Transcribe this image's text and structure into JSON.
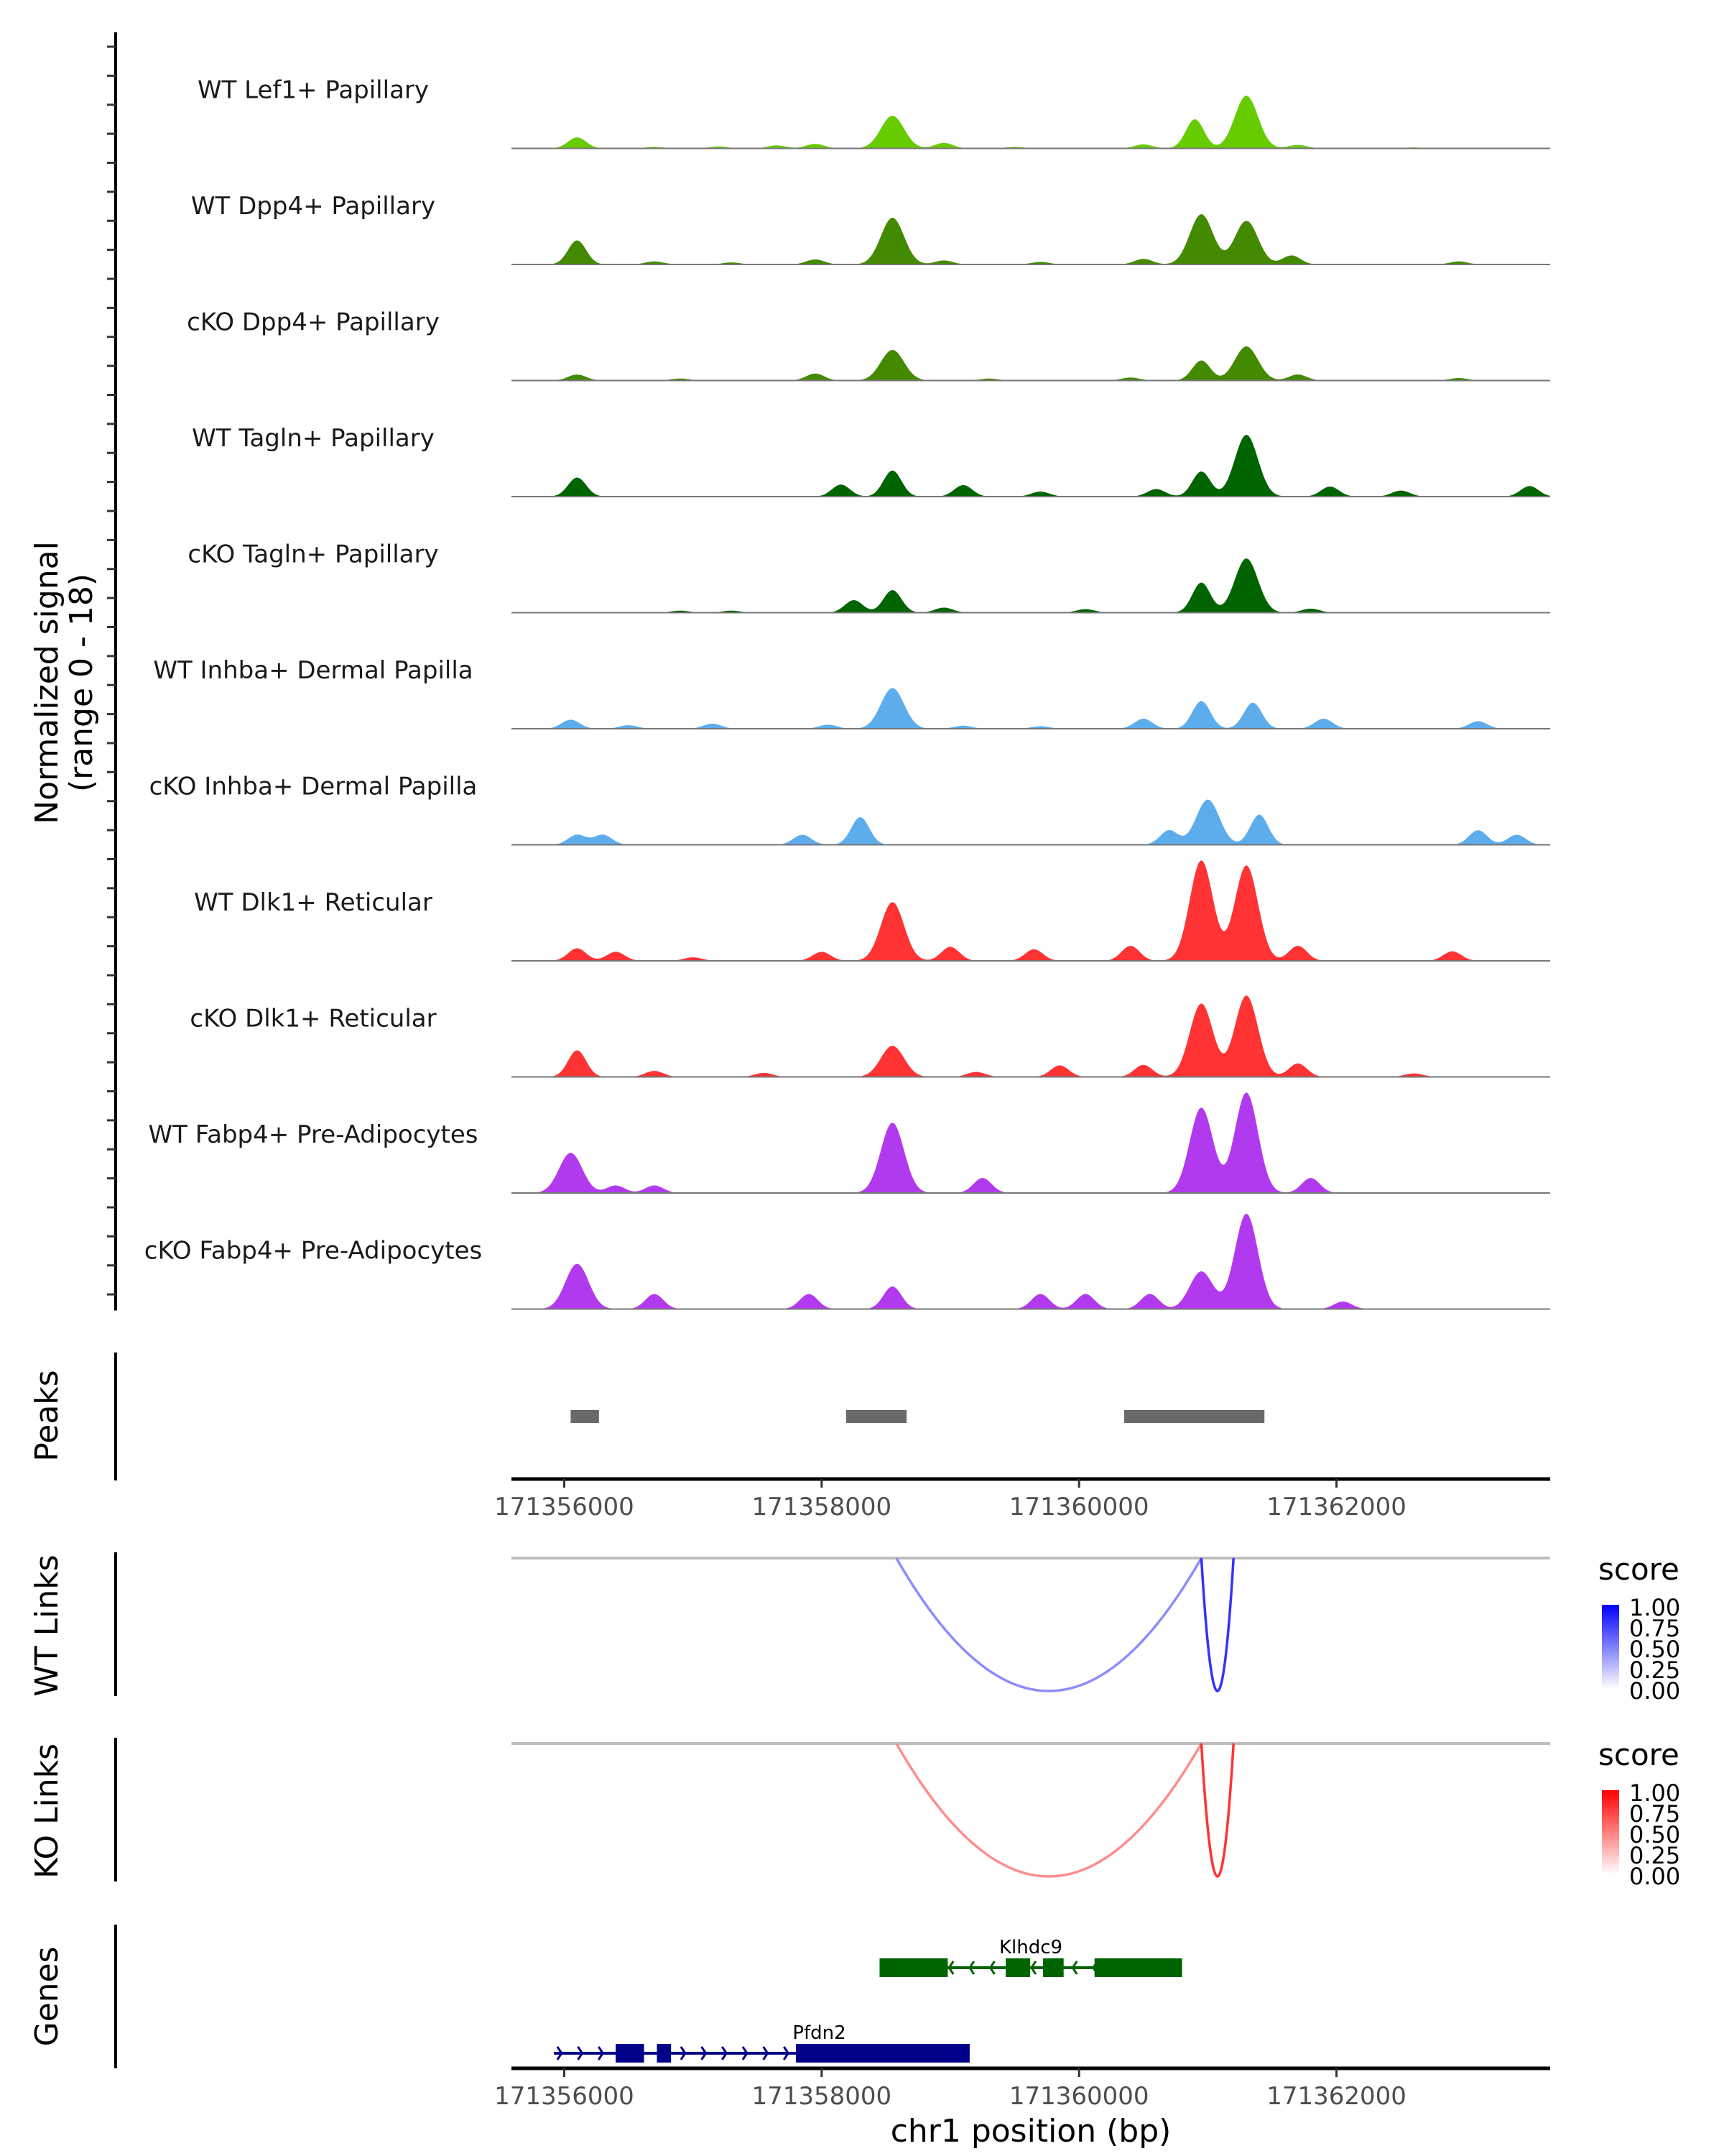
{
  "chart_data": {
    "type": "area",
    "title": "",
    "ylabel": "Normalized signal\n(range 0 - 18)",
    "ylabel_lines": [
      "Normalized signal",
      "(range 0 - 18)"
    ],
    "xlabel": "chr1 position (bp)",
    "chromosome": "chr1",
    "xlim": [
      171355590,
      171363660
    ],
    "ylim": [
      0,
      18
    ],
    "x_ticks": [
      171356000,
      171358000,
      171360000,
      171362000
    ],
    "x_tick_labels": [
      "171356000",
      "171358000",
      "171360000",
      "171362000"
    ],
    "coverage_tracks": [
      {
        "name": "WT Lef1+ Papillary",
        "color": "#66CC00",
        "peaks": [
          [
            171356100,
            2.2
          ],
          [
            171356700,
            0.3
          ],
          [
            171357200,
            0.4
          ],
          [
            171357650,
            0.6
          ],
          [
            171357950,
            0.9
          ],
          [
            171358550,
            6.5
          ],
          [
            171358950,
            1.1
          ],
          [
            171359500,
            0.3
          ],
          [
            171360500,
            0.8
          ],
          [
            171360900,
            5.8
          ],
          [
            171361300,
            10.5
          ],
          [
            171361700,
            0.7
          ],
          [
            171362600,
            0.2
          ]
        ]
      },
      {
        "name": "WT Dpp4+ Papillary",
        "color": "#448A00",
        "peaks": [
          [
            171356100,
            4.8
          ],
          [
            171356700,
            0.6
          ],
          [
            171357300,
            0.4
          ],
          [
            171357950,
            1.0
          ],
          [
            171358550,
            9.3
          ],
          [
            171358950,
            0.8
          ],
          [
            171359700,
            0.5
          ],
          [
            171360500,
            1.1
          ],
          [
            171360950,
            10.0
          ],
          [
            171361300,
            8.7
          ],
          [
            171361650,
            1.8
          ],
          [
            171362950,
            0.6
          ]
        ]
      },
      {
        "name": "cKO Dpp4+ Papillary",
        "color": "#448A00",
        "peaks": [
          [
            171356100,
            1.2
          ],
          [
            171356900,
            0.4
          ],
          [
            171357950,
            1.4
          ],
          [
            171358550,
            6.1
          ],
          [
            171359300,
            0.4
          ],
          [
            171360400,
            0.6
          ],
          [
            171360950,
            4.0
          ],
          [
            171361300,
            6.8
          ],
          [
            171361700,
            1.2
          ],
          [
            171362950,
            0.5
          ]
        ]
      },
      {
        "name": "WT Tagln+ Papillary",
        "color": "#006400",
        "peaks": [
          [
            171356100,
            3.8
          ],
          [
            171358150,
            2.4
          ],
          [
            171358550,
            5.2
          ],
          [
            171359100,
            2.3
          ],
          [
            171359700,
            1.0
          ],
          [
            171360600,
            1.5
          ],
          [
            171360950,
            5.0
          ],
          [
            171361300,
            12.3
          ],
          [
            171361950,
            2.0
          ],
          [
            171362500,
            1.2
          ],
          [
            171363500,
            2.1
          ]
        ]
      },
      {
        "name": "cKO Tagln+ Papillary",
        "color": "#006400",
        "peaks": [
          [
            171356900,
            0.4
          ],
          [
            171357300,
            0.4
          ],
          [
            171358250,
            2.5
          ],
          [
            171358550,
            4.5
          ],
          [
            171358950,
            1.0
          ],
          [
            171360050,
            0.7
          ],
          [
            171360950,
            6.0
          ],
          [
            171361300,
            10.8
          ],
          [
            171361800,
            0.8
          ]
        ]
      },
      {
        "name": "WT Inhba+ Dermal Papilla",
        "color": "#5DADEC",
        "peaks": [
          [
            171356050,
            1.8
          ],
          [
            171356500,
            0.7
          ],
          [
            171357150,
            1.0
          ],
          [
            171358050,
            0.8
          ],
          [
            171358550,
            8.1
          ],
          [
            171359100,
            0.6
          ],
          [
            171359700,
            0.5
          ],
          [
            171360500,
            2.0
          ],
          [
            171360950,
            5.5
          ],
          [
            171361350,
            5.2
          ],
          [
            171361900,
            2.0
          ],
          [
            171363100,
            1.5
          ]
        ]
      },
      {
        "name": "cKO Inhba+ Dermal Papilla",
        "color": "#5DADEC",
        "peaks": [
          [
            171356100,
            2.0
          ],
          [
            171356300,
            2.0
          ],
          [
            171357850,
            2.0
          ],
          [
            171358300,
            5.5
          ],
          [
            171360700,
            2.9
          ],
          [
            171361000,
            9.0
          ],
          [
            171361400,
            6.0
          ],
          [
            171363100,
            2.9
          ],
          [
            171363400,
            2.0
          ]
        ]
      },
      {
        "name": "WT Dlk1+ Reticular",
        "color": "#FF3333",
        "peaks": [
          [
            171356100,
            2.5
          ],
          [
            171356400,
            1.8
          ],
          [
            171357000,
            0.7
          ],
          [
            171358000,
            1.8
          ],
          [
            171358550,
            11.7
          ],
          [
            171359000,
            2.8
          ],
          [
            171359650,
            2.3
          ],
          [
            171360400,
            3.0
          ],
          [
            171360950,
            20.0
          ],
          [
            171361300,
            19.0
          ],
          [
            171361700,
            3.0
          ],
          [
            171362900,
            1.9
          ]
        ]
      },
      {
        "name": "cKO Dlk1+ Reticular",
        "color": "#FF3333",
        "peaks": [
          [
            171356100,
            5.3
          ],
          [
            171356700,
            1.2
          ],
          [
            171357550,
            0.8
          ],
          [
            171358550,
            6.2
          ],
          [
            171359200,
            1.0
          ],
          [
            171359850,
            2.3
          ],
          [
            171360500,
            2.4
          ],
          [
            171360950,
            14.6
          ],
          [
            171361300,
            16.2
          ],
          [
            171361700,
            2.7
          ],
          [
            171362600,
            0.7
          ]
        ]
      },
      {
        "name": "WT Fabp4+ Pre-Adipocytes",
        "color": "#B23AEE",
        "peaks": [
          [
            171356050,
            8.0
          ],
          [
            171356400,
            1.5
          ],
          [
            171356700,
            1.5
          ],
          [
            171358550,
            14.0
          ],
          [
            171359250,
            3.0
          ],
          [
            171360950,
            17.0
          ],
          [
            171361300,
            20.0
          ],
          [
            171361800,
            3.0
          ]
        ]
      },
      {
        "name": "cKO Fabp4+ Pre-Adipocytes",
        "color": "#B23AEE",
        "peaks": [
          [
            171356100,
            9.0
          ],
          [
            171356700,
            3.0
          ],
          [
            171357900,
            3.0
          ],
          [
            171358550,
            4.5
          ],
          [
            171359700,
            3.0
          ],
          [
            171360050,
            3.0
          ],
          [
            171360550,
            3.0
          ],
          [
            171360950,
            7.5
          ],
          [
            171361300,
            19.0
          ],
          [
            171362050,
            1.5
          ]
        ]
      }
    ],
    "peaks_track": {
      "label": "Peaks",
      "color": "#696969",
      "regions": [
        [
          171356050,
          171356270
        ],
        [
          171358190,
          171358660
        ],
        [
          171360350,
          171361440
        ]
      ]
    },
    "link_tracks": [
      {
        "label": "WT Links",
        "legend_title": "score",
        "low_color": "#FFFFFF",
        "high_color": "#0000FF",
        "legend_ticks": [
          "1.00",
          "0.75",
          "0.50",
          "0.25",
          "0.00"
        ],
        "links": [
          {
            "start": 171358580,
            "end": 171360950,
            "score": 0.45
          },
          {
            "start": 171360950,
            "end": 171361200,
            "score": 0.8
          }
        ]
      },
      {
        "label": "KO Links",
        "legend_title": "score",
        "low_color": "#FFFFFF",
        "high_color": "#FF0000",
        "legend_ticks": [
          "1.00",
          "0.75",
          "0.50",
          "0.25",
          "0.00"
        ],
        "links": [
          {
            "start": 171358580,
            "end": 171360950,
            "score": 0.45
          },
          {
            "start": 171360950,
            "end": 171361200,
            "score": 0.8
          }
        ]
      }
    ],
    "genes_track": {
      "label": "Genes",
      "genes": [
        {
          "name": "Klhdc9",
          "strand": "-",
          "color": "#006400",
          "start": 171358450,
          "end": 171360800,
          "exons": [
            [
              171358450,
              171358980
            ],
            [
              171359430,
              171359620
            ],
            [
              171359720,
              171359880
            ],
            [
              171360120,
              171360800
            ]
          ]
        },
        {
          "name": "Pfdn2",
          "strand": "+",
          "color": "#00008B",
          "start": 171355920,
          "end": 171359150,
          "exons": [
            [
              171356400,
              171356620
            ],
            [
              171356720,
              171356830
            ],
            [
              171357800,
              171359150
            ]
          ]
        }
      ]
    }
  }
}
